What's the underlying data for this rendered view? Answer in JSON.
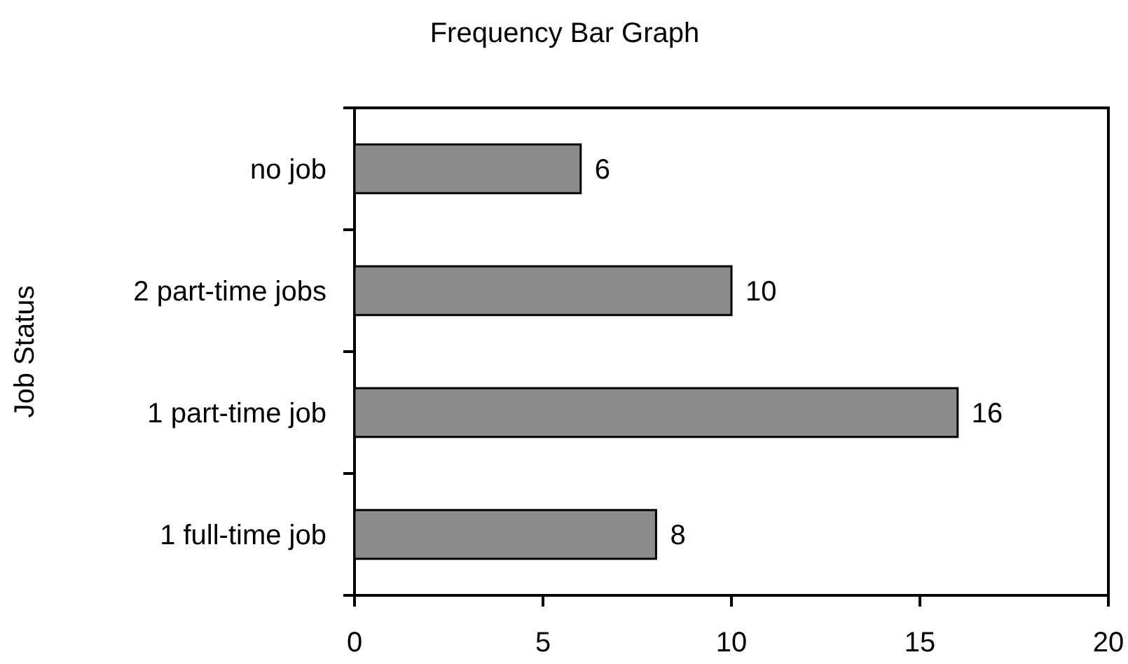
{
  "chart_data": {
    "type": "bar",
    "orientation": "horizontal",
    "title": "Frequency Bar Graph",
    "ylabel": "Job Status",
    "categories": [
      "no job",
      "2 part-time jobs",
      "1 part-time job",
      "1 full-time job"
    ],
    "values": [
      6,
      10,
      16,
      8
    ],
    "color": "#8c8c8c",
    "data_labels": true,
    "xlim": [
      0,
      20
    ],
    "xticks": [
      0,
      5,
      10,
      15,
      20
    ],
    "grid": false
  }
}
